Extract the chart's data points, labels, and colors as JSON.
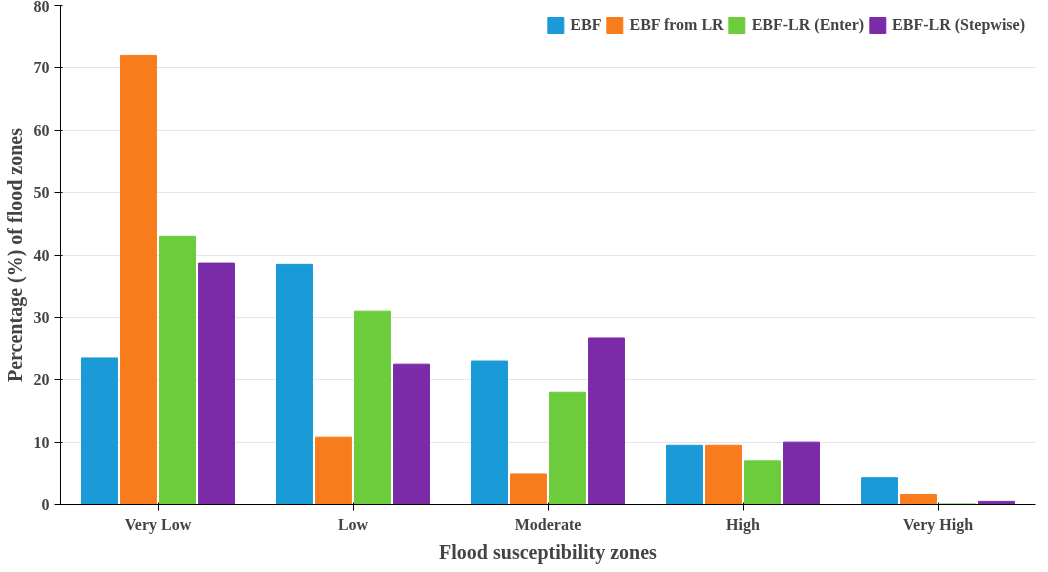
{
  "chart_data": {
    "type": "bar",
    "xlabel": "Flood susceptibility zones",
    "ylabel": "Percentage (%) of flood zones",
    "categories": [
      "Very Low",
      "Low",
      "Moderate",
      "High",
      "Very High"
    ],
    "series": [
      {
        "name": "EBF",
        "color": "#1a9ad6",
        "values": [
          23.5,
          38.5,
          23,
          9.5,
          4.3
        ]
      },
      {
        "name": "EBF from LR",
        "color": "#f97c1c",
        "values": [
          72,
          10.8,
          4.9,
          9.5,
          1.6
        ]
      },
      {
        "name": "EBF-LR (Enter)",
        "color": "#6ccc3c",
        "values": [
          43,
          31,
          18,
          7,
          0.1
        ]
      },
      {
        "name": "EBF-LR (Stepwise)",
        "color": "#7b2aa8",
        "values": [
          38.7,
          22.5,
          26.7,
          10,
          0.5
        ]
      }
    ],
    "ylim": [
      0,
      80
    ],
    "yticks": [
      0,
      10,
      20,
      30,
      40,
      50,
      60,
      70,
      80
    ],
    "grid": "y",
    "legend": "top right"
  }
}
